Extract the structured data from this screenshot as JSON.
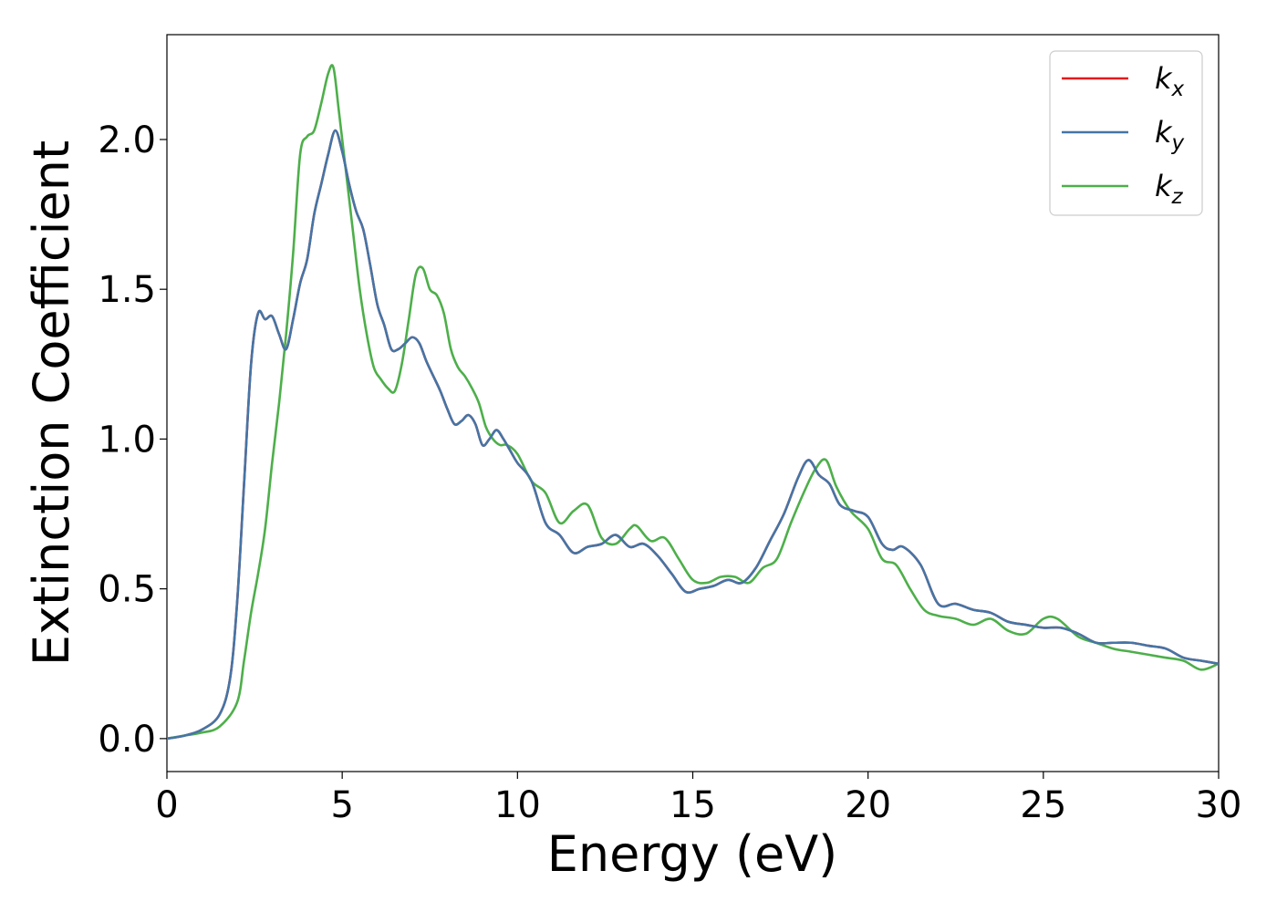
{
  "chart_data": {
    "type": "line",
    "xlabel": "Energy (eV)",
    "ylabel": "Extinction Coefficient",
    "xlim": [
      0,
      30
    ],
    "ylim": [
      -0.11,
      2.35
    ],
    "xticks": [
      0,
      5,
      10,
      15,
      20,
      25,
      30
    ],
    "xtick_labels": [
      "0",
      "5",
      "10",
      "15",
      "20",
      "25",
      "30"
    ],
    "yticks": [
      0.0,
      0.5,
      1.0,
      1.5,
      2.0
    ],
    "ytick_labels": [
      "0.0",
      "0.5",
      "1.0",
      "1.5",
      "2.0"
    ],
    "grid": false,
    "legend_position": "top-right",
    "series": [
      {
        "name": "k",
        "subscript": "x",
        "color": "#e41a1c",
        "x": [
          0,
          0.5,
          1.0,
          1.5,
          1.8,
          2.0,
          2.2,
          2.4,
          2.6,
          2.8,
          3.0,
          3.2,
          3.4,
          3.6,
          3.8,
          4.0,
          4.2,
          4.4,
          4.6,
          4.8,
          5.0,
          5.2,
          5.4,
          5.6,
          5.8,
          6.0,
          6.2,
          6.4,
          6.6,
          6.8,
          7.0,
          7.2,
          7.4,
          7.6,
          7.8,
          8.0,
          8.2,
          8.4,
          8.6,
          8.8,
          9.0,
          9.2,
          9.4,
          9.6,
          9.8,
          10.0,
          10.4,
          10.8,
          11.2,
          11.6,
          12.0,
          12.4,
          12.8,
          13.2,
          13.6,
          14.0,
          14.4,
          14.8,
          15.2,
          15.6,
          16.0,
          16.4,
          16.8,
          17.2,
          17.6,
          18.0,
          18.3,
          18.6,
          18.9,
          19.2,
          19.6,
          20.0,
          20.4,
          20.7,
          21.0,
          21.5,
          22.0,
          22.5,
          23.0,
          23.5,
          24.0,
          24.5,
          25.0,
          25.5,
          26.0,
          26.5,
          27.0,
          27.5,
          28.0,
          28.5,
          29.0,
          29.5,
          30.0
        ],
        "y": [
          0.0,
          0.01,
          0.03,
          0.08,
          0.2,
          0.45,
          0.85,
          1.25,
          1.42,
          1.4,
          1.41,
          1.35,
          1.3,
          1.4,
          1.52,
          1.6,
          1.75,
          1.85,
          1.95,
          2.03,
          1.96,
          1.85,
          1.76,
          1.7,
          1.58,
          1.45,
          1.38,
          1.3,
          1.3,
          1.32,
          1.34,
          1.32,
          1.26,
          1.21,
          1.16,
          1.1,
          1.05,
          1.06,
          1.08,
          1.05,
          0.98,
          1.0,
          1.03,
          1.0,
          0.96,
          0.92,
          0.86,
          0.72,
          0.68,
          0.62,
          0.64,
          0.65,
          0.68,
          0.64,
          0.65,
          0.61,
          0.55,
          0.49,
          0.5,
          0.51,
          0.53,
          0.52,
          0.57,
          0.66,
          0.75,
          0.87,
          0.93,
          0.88,
          0.85,
          0.78,
          0.76,
          0.74,
          0.65,
          0.63,
          0.64,
          0.58,
          0.45,
          0.45,
          0.43,
          0.42,
          0.39,
          0.38,
          0.37,
          0.37,
          0.35,
          0.32,
          0.32,
          0.32,
          0.31,
          0.3,
          0.27,
          0.26,
          0.25
        ]
      },
      {
        "name": "k",
        "subscript": "y",
        "color": "#4475a6",
        "x": [
          0,
          0.5,
          1.0,
          1.5,
          1.8,
          2.0,
          2.2,
          2.4,
          2.6,
          2.8,
          3.0,
          3.2,
          3.4,
          3.6,
          3.8,
          4.0,
          4.2,
          4.4,
          4.6,
          4.8,
          5.0,
          5.2,
          5.4,
          5.6,
          5.8,
          6.0,
          6.2,
          6.4,
          6.6,
          6.8,
          7.0,
          7.2,
          7.4,
          7.6,
          7.8,
          8.0,
          8.2,
          8.4,
          8.6,
          8.8,
          9.0,
          9.2,
          9.4,
          9.6,
          9.8,
          10.0,
          10.4,
          10.8,
          11.2,
          11.6,
          12.0,
          12.4,
          12.8,
          13.2,
          13.6,
          14.0,
          14.4,
          14.8,
          15.2,
          15.6,
          16.0,
          16.4,
          16.8,
          17.2,
          17.6,
          18.0,
          18.3,
          18.6,
          18.9,
          19.2,
          19.6,
          20.0,
          20.4,
          20.7,
          21.0,
          21.5,
          22.0,
          22.5,
          23.0,
          23.5,
          24.0,
          24.5,
          25.0,
          25.5,
          26.0,
          26.5,
          27.0,
          27.5,
          28.0,
          28.5,
          29.0,
          29.5,
          30.0
        ],
        "y": [
          0.0,
          0.01,
          0.03,
          0.08,
          0.2,
          0.45,
          0.85,
          1.25,
          1.42,
          1.4,
          1.41,
          1.35,
          1.3,
          1.4,
          1.52,
          1.6,
          1.75,
          1.85,
          1.95,
          2.03,
          1.96,
          1.85,
          1.76,
          1.7,
          1.58,
          1.45,
          1.38,
          1.3,
          1.3,
          1.32,
          1.34,
          1.32,
          1.26,
          1.21,
          1.16,
          1.1,
          1.05,
          1.06,
          1.08,
          1.05,
          0.98,
          1.0,
          1.03,
          1.0,
          0.96,
          0.92,
          0.86,
          0.72,
          0.68,
          0.62,
          0.64,
          0.65,
          0.68,
          0.64,
          0.65,
          0.61,
          0.55,
          0.49,
          0.5,
          0.51,
          0.53,
          0.52,
          0.57,
          0.66,
          0.75,
          0.87,
          0.93,
          0.88,
          0.85,
          0.78,
          0.76,
          0.74,
          0.65,
          0.63,
          0.64,
          0.58,
          0.45,
          0.45,
          0.43,
          0.42,
          0.39,
          0.38,
          0.37,
          0.37,
          0.35,
          0.32,
          0.32,
          0.32,
          0.31,
          0.3,
          0.27,
          0.26,
          0.25
        ]
      },
      {
        "name": "k",
        "subscript": "z",
        "color": "#4daf4a",
        "x": [
          0,
          0.5,
          1.0,
          1.5,
          2.0,
          2.2,
          2.4,
          2.6,
          2.8,
          3.0,
          3.2,
          3.4,
          3.6,
          3.8,
          4.0,
          4.2,
          4.4,
          4.6,
          4.75,
          4.9,
          5.1,
          5.3,
          5.5,
          5.7,
          5.9,
          6.1,
          6.3,
          6.5,
          6.7,
          6.9,
          7.1,
          7.3,
          7.5,
          7.7,
          7.9,
          8.1,
          8.3,
          8.5,
          8.7,
          8.9,
          9.1,
          9.3,
          9.5,
          9.7,
          10.0,
          10.4,
          10.8,
          11.2,
          11.6,
          12.0,
          12.4,
          12.8,
          13.2,
          13.4,
          13.8,
          14.2,
          14.6,
          15.0,
          15.4,
          15.8,
          16.2,
          16.6,
          17.0,
          17.4,
          17.8,
          18.2,
          18.5,
          18.8,
          19.1,
          19.5,
          20.0,
          20.4,
          20.8,
          21.2,
          21.6,
          22.0,
          22.5,
          23.0,
          23.5,
          24.0,
          24.5,
          25.0,
          25.4,
          26.0,
          26.5,
          27.0,
          27.5,
          28.0,
          28.5,
          29.0,
          29.5,
          30.0
        ],
        "y": [
          0.0,
          0.01,
          0.02,
          0.04,
          0.12,
          0.26,
          0.42,
          0.55,
          0.7,
          0.92,
          1.12,
          1.35,
          1.62,
          1.95,
          2.01,
          2.03,
          2.12,
          2.22,
          2.24,
          2.1,
          1.9,
          1.7,
          1.5,
          1.35,
          1.24,
          1.2,
          1.17,
          1.16,
          1.25,
          1.4,
          1.55,
          1.57,
          1.5,
          1.48,
          1.42,
          1.3,
          1.24,
          1.21,
          1.17,
          1.12,
          1.04,
          1.0,
          0.98,
          0.98,
          0.95,
          0.86,
          0.82,
          0.72,
          0.76,
          0.78,
          0.67,
          0.65,
          0.7,
          0.71,
          0.66,
          0.67,
          0.6,
          0.53,
          0.52,
          0.54,
          0.54,
          0.52,
          0.57,
          0.6,
          0.72,
          0.83,
          0.9,
          0.93,
          0.84,
          0.76,
          0.7,
          0.6,
          0.58,
          0.5,
          0.43,
          0.41,
          0.4,
          0.38,
          0.4,
          0.36,
          0.35,
          0.4,
          0.4,
          0.34,
          0.32,
          0.3,
          0.29,
          0.28,
          0.27,
          0.26,
          0.23,
          0.25
        ]
      }
    ]
  }
}
